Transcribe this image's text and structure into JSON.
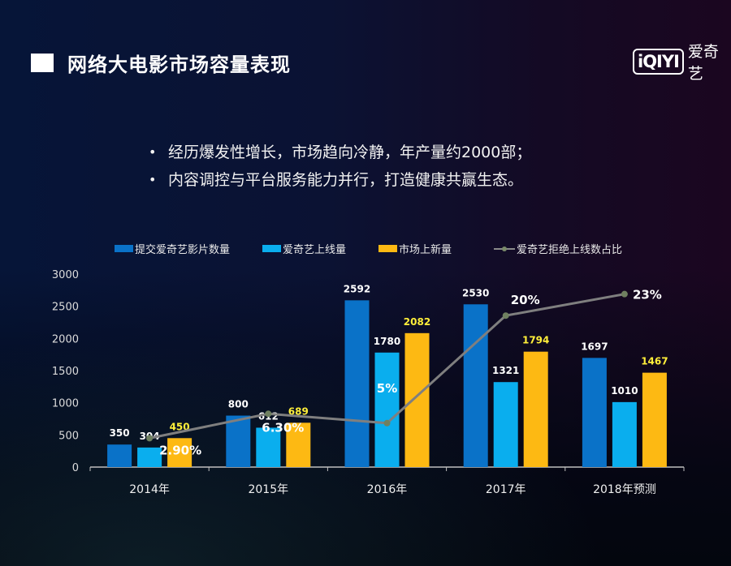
{
  "header": {
    "title": "网络大电影市场容量表现",
    "logo_mark": "iQIYI",
    "logo_text": "爱奇艺"
  },
  "bullets": [
    {
      "marker": "•",
      "text": "经历爆发性增长，市场趋向冷静，年产量约2000部；"
    },
    {
      "marker": "•",
      "text": "内容调控与平台服务能力并行，打造健康共赢生态。"
    }
  ],
  "colors": {
    "submitted": "#0a72c8",
    "online": "#0aaeee",
    "market_new": "#fdb913",
    "ratio_line": "#7f7f7f",
    "ratio_marker": "#6f8060",
    "axis": "#bfbfbf",
    "yellow_label": "#ffef3a"
  },
  "chart_data": {
    "type": "bar",
    "categories": [
      "2014年",
      "2015年",
      "2016年",
      "2017年",
      "2018年预测"
    ],
    "ylim": [
      0,
      3000
    ],
    "yticks": [
      "0",
      "500",
      "1000",
      "1500",
      "2000",
      "2500",
      "3000"
    ],
    "grid": false,
    "legend_position": "top",
    "series": [
      {
        "name": "提交爱奇艺影片数量",
        "values": [
          350,
          800,
          2592,
          2530,
          1697
        ],
        "labels": [
          "350",
          "800",
          "2592",
          "2530",
          "1697"
        ]
      },
      {
        "name": "爱奇艺上线量",
        "values": [
          304,
          612,
          1780,
          1321,
          1010
        ],
        "labels": [
          "304",
          "612",
          "1780",
          "1321",
          "1010"
        ]
      },
      {
        "name": "市场上新量",
        "values": [
          450,
          689,
          2082,
          1794,
          1467
        ],
        "labels": [
          "450",
          "689",
          "2082",
          "1794",
          "1467"
        ]
      }
    ],
    "line_series": {
      "name": "爱奇艺拒绝上线数占比",
      "values": [
        2.9,
        6.3,
        5,
        20,
        23
      ],
      "labels": [
        "2.90%",
        "6.30%",
        "5%",
        "20%",
        "23%"
      ],
      "unit": "%"
    }
  }
}
